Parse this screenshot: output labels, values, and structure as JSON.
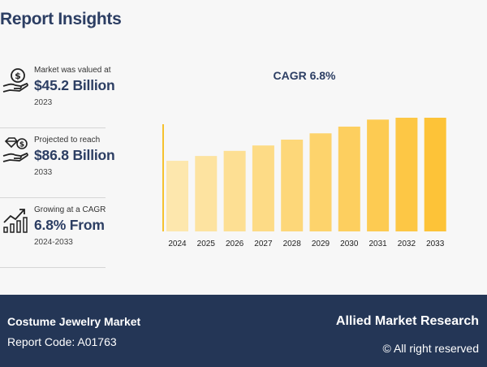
{
  "header": {
    "title": "Report Insights"
  },
  "stats": [
    {
      "label": "Market was valued at",
      "value": "$45.2 Billion",
      "year": "2023",
      "icon": "money-hand-icon"
    },
    {
      "label": "Projected to reach",
      "value": "$86.8 Billion",
      "year": "2033",
      "icon": "diamond-hand-icon"
    },
    {
      "label": "Growing at a CAGR",
      "value": "6.8% From",
      "year": "2024-2033",
      "icon": "growth-chart-icon"
    }
  ],
  "chart_data": {
    "type": "bar",
    "title": "CAGR 6.8%",
    "categories": [
      "2024",
      "2025",
      "2026",
      "2027",
      "2028",
      "2029",
      "2030",
      "2031",
      "2032",
      "2033"
    ],
    "values": [
      48.3,
      51.6,
      55.1,
      58.8,
      62.8,
      67.1,
      71.7,
      76.5,
      81.7,
      86.8
    ],
    "ylim": [
      0,
      100
    ],
    "grid": false,
    "colors": [
      "#fde7ad",
      "#fde3a0",
      "#fddf93",
      "#fddb86",
      "#fdd779",
      "#fdd36c",
      "#fdcf5f",
      "#fdcb52",
      "#fdc745",
      "#fdc338"
    ],
    "axis_color": "#f5c12e"
  },
  "footer": {
    "market_name": "Costume Jewelry Market",
    "report_code": "Report Code: A01763",
    "brand": "Allied Market Research",
    "rights": "© All right reserved"
  }
}
